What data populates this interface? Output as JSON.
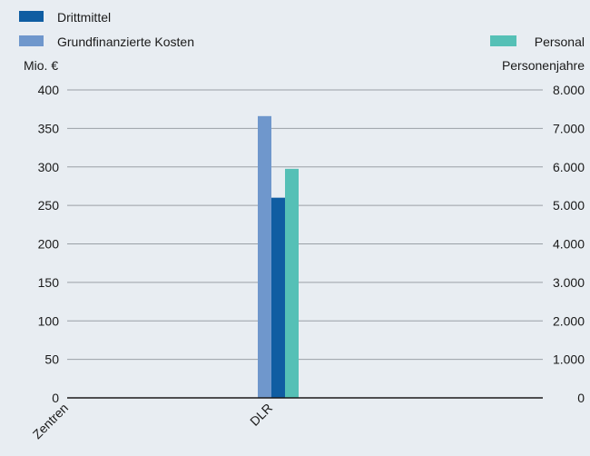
{
  "chart_data": {
    "type": "bar",
    "categories": [
      "Zentren",
      "DLR"
    ],
    "legend": {
      "left": [
        "Drittmittel",
        "Grundfinanzierte Kosten"
      ],
      "right": [
        "Personal"
      ]
    },
    "y_left_unit": "Mio. €",
    "y_right_unit": "Personenjahre",
    "y_left_ticks": [
      "0",
      "50",
      "100",
      "150",
      "200",
      "250",
      "300",
      "350",
      "400"
    ],
    "y_right_ticks": [
      "0",
      "1.000",
      "2.000",
      "3.000",
      "4.000",
      "5.000",
      "6.000",
      "7.000",
      "8.000"
    ],
    "ylim_left": [
      0,
      400
    ],
    "ylim_right": [
      0,
      8000
    ],
    "grid": true,
    "series": [
      {
        "name": "Grundfinanzierte Kosten",
        "axis": "left",
        "color": "#6f97cc",
        "values": [
          null,
          366
        ]
      },
      {
        "name": "Drittmittel",
        "axis": "left",
        "color": "#0f5da2",
        "values": [
          null,
          260
        ]
      },
      {
        "name": "Personal",
        "axis": "right",
        "color": "#55c0b6",
        "values": [
          null,
          5950
        ]
      }
    ]
  }
}
